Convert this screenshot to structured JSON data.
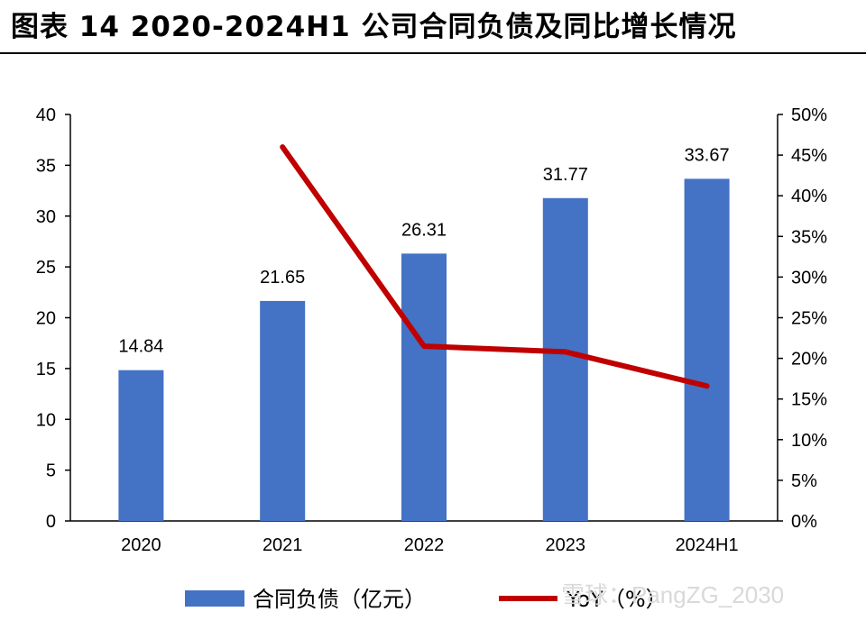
{
  "header": {
    "title": "图表 14 2020-2024H1  公司合同负债及同比增长情况"
  },
  "chart_data": {
    "type": "bar",
    "categories": [
      "2020",
      "2021",
      "2022",
      "2023",
      "2024H1"
    ],
    "series": [
      {
        "name": "合同负债（亿元）",
        "type": "bar",
        "axis": "left",
        "color": "#4472C4",
        "values": [
          14.84,
          21.65,
          26.31,
          31.77,
          33.67
        ],
        "labels": [
          "14.84",
          "21.65",
          "26.31",
          "31.77",
          "33.67"
        ]
      },
      {
        "name": "YoY（%）",
        "type": "line",
        "axis": "right",
        "color": "#C00000",
        "values": [
          null,
          46.0,
          21.5,
          20.8,
          16.6
        ]
      }
    ],
    "y_left": {
      "ylim": [
        0,
        40
      ],
      "ticks": [
        "0",
        "5",
        "10",
        "15",
        "20",
        "25",
        "30",
        "35",
        "40"
      ]
    },
    "y_right": {
      "ylim": [
        0,
        50
      ],
      "ticks": [
        "0%",
        "5%",
        "10%",
        "15%",
        "20%",
        "25%",
        "30%",
        "35%",
        "40%",
        "45%",
        "50%"
      ]
    },
    "grid": false,
    "legend_position": "bottom"
  },
  "watermark": {
    "text": "雪球：PangZG_2030"
  }
}
